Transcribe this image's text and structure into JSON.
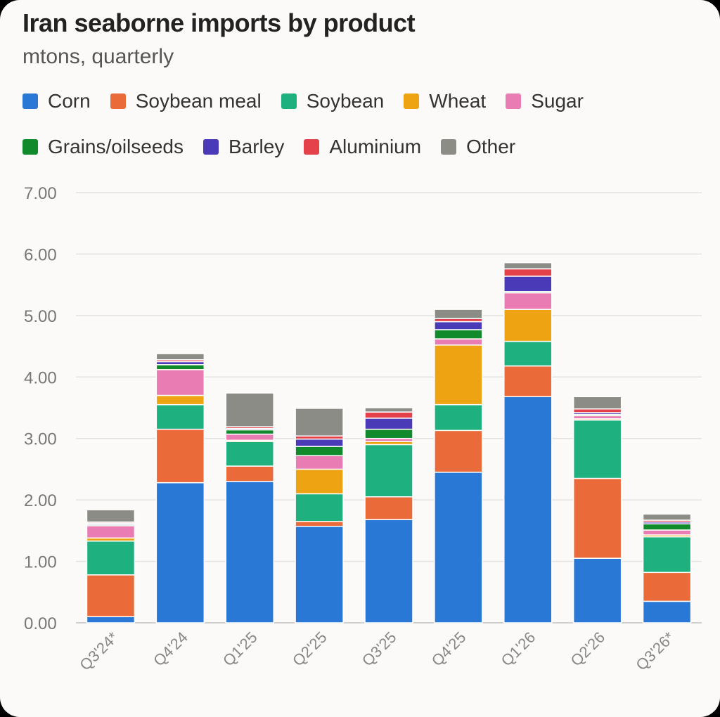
{
  "chart_data": {
    "type": "bar",
    "stacked": true,
    "title": "Iran seaborne imports by product",
    "subtitle": "mtons, quarterly",
    "categories": [
      "Q3'24*",
      "Q4'24",
      "Q1'25",
      "Q2'25",
      "Q3'25",
      "Q4'25",
      "Q1'26",
      "Q2'26",
      "Q3'26*"
    ],
    "y_ticks": [
      "0.00",
      "1.00",
      "2.00",
      "3.00",
      "4.00",
      "5.00",
      "6.00",
      "7.00"
    ],
    "ylim": [
      0,
      7
    ],
    "grid": true,
    "legend_position": "top",
    "series": [
      {
        "name": "Corn",
        "color": "#2a78d6",
        "values": [
          0.1,
          2.28,
          2.3,
          1.57,
          1.68,
          2.45,
          3.68,
          1.05,
          0.35
        ]
      },
      {
        "name": "Soybean meal",
        "color": "#eb6a3a",
        "values": [
          0.68,
          0.87,
          0.25,
          0.08,
          0.37,
          0.68,
          0.5,
          1.3,
          0.47
        ]
      },
      {
        "name": "Soybean",
        "color": "#1fb07f",
        "values": [
          0.55,
          0.4,
          0.4,
          0.45,
          0.85,
          0.42,
          0.4,
          0.95,
          0.58
        ]
      },
      {
        "name": "Wheat",
        "color": "#eda312",
        "values": [
          0.05,
          0.15,
          0.02,
          0.4,
          0.05,
          0.97,
          0.52,
          0.02,
          0.03
        ]
      },
      {
        "name": "Sugar",
        "color": "#e87cb3",
        "values": [
          0.2,
          0.42,
          0.1,
          0.22,
          0.05,
          0.1,
          0.27,
          0.05,
          0.08
        ]
      },
      {
        "name": "Grains/oilseeds",
        "color": "#118a2b",
        "values": [
          0.02,
          0.08,
          0.07,
          0.15,
          0.15,
          0.15,
          0.02,
          0.02,
          0.1
        ]
      },
      {
        "name": "Barley",
        "color": "#4a3ab8",
        "values": [
          0.02,
          0.05,
          0.02,
          0.12,
          0.18,
          0.13,
          0.25,
          0.03,
          0.03
        ]
      },
      {
        "name": "Aluminium",
        "color": "#e5414b",
        "values": [
          0.02,
          0.03,
          0.03,
          0.05,
          0.1,
          0.05,
          0.12,
          0.06,
          0.03
        ]
      },
      {
        "name": "Other",
        "color": "#8c8c86",
        "values": [
          0.2,
          0.1,
          0.55,
          0.45,
          0.07,
          0.15,
          0.1,
          0.2,
          0.1
        ]
      }
    ]
  }
}
